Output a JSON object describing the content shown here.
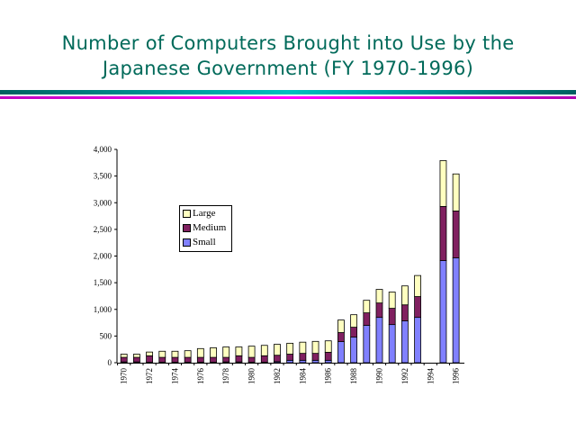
{
  "title_line1": "Number of Computers Brought into Use by the",
  "title_line2": "Japanese Government (FY 1970-1996)",
  "chart_data": {
    "type": "bar",
    "stacked": true,
    "title": "Number of Computers Brought into Use by the Japanese Government (FY 1970-1996)",
    "xlabel": "",
    "ylabel": "",
    "ylim": [
      0,
      4000
    ],
    "yticks": [
      "0",
      "500",
      "1,000",
      "1,500",
      "2,000",
      "2,500",
      "3,000",
      "3,500",
      "4,000"
    ],
    "ytick_values": [
      0,
      500,
      1000,
      1500,
      2000,
      2500,
      3000,
      3500,
      4000
    ],
    "categories": [
      "1970",
      "1971",
      "1972",
      "1973",
      "1974",
      "1975",
      "1976",
      "1977",
      "1978",
      "1979",
      "1980",
      "1981",
      "1982",
      "1983",
      "1984",
      "1985",
      "1986",
      "1987",
      "1988",
      "1989",
      "1990",
      "1991",
      "1992",
      "1993",
      "1994",
      "1995",
      "1996"
    ],
    "xtick_labels": [
      "1970",
      "1972",
      "1974",
      "1976",
      "1978",
      "1980",
      "1982",
      "1984",
      "1986",
      "1988",
      "1990",
      "1992",
      "1994",
      "1996"
    ],
    "legend_position": "upper-left-center",
    "series": [
      {
        "name": "Small",
        "color": "#8080ff",
        "values": [
          15,
          15,
          10,
          10,
          10,
          10,
          10,
          10,
          15,
          15,
          10,
          10,
          20,
          45,
          45,
          45,
          45,
          395,
          480,
          700,
          850,
          715,
          785,
          850,
          0,
          1915,
          1965
        ]
      },
      {
        "name": "Medium",
        "color": "#802060",
        "values": [
          85,
          85,
          120,
          90,
          90,
          90,
          90,
          90,
          85,
          115,
          90,
          120,
          120,
          115,
          130,
          130,
          150,
          170,
          185,
          235,
          270,
          305,
          300,
          390,
          0,
          1015,
          880
        ]
      },
      {
        "name": "Large",
        "color": "#ffffc0",
        "values": [
          60,
          60,
          70,
          115,
          115,
          125,
          165,
          180,
          195,
          165,
          210,
          195,
          205,
          205,
          210,
          225,
          215,
          235,
          235,
          235,
          255,
          305,
          355,
          395,
          0,
          860,
          695
        ]
      }
    ]
  }
}
